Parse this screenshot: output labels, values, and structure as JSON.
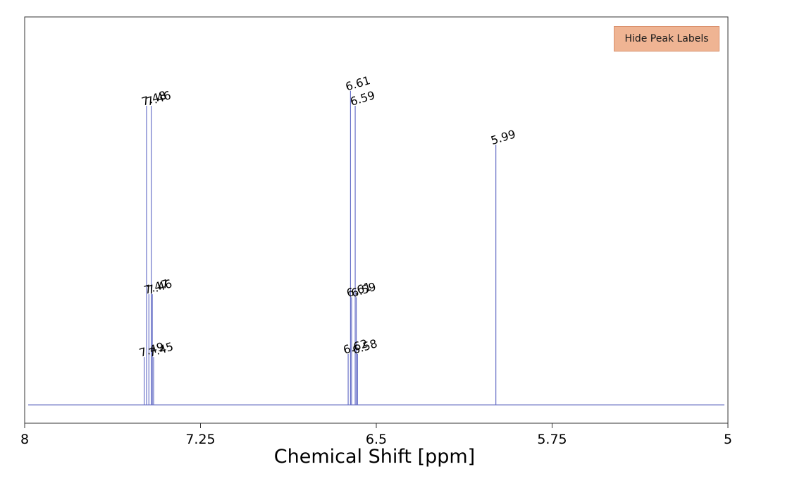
{
  "controls": {
    "toggle_label": "Hide Peak Labels"
  },
  "chart_data": {
    "type": "stick",
    "xlabel": "Chemical Shift [ppm]",
    "xlim": [
      8,
      5
    ],
    "xticks": [
      "8",
      "7.25",
      "6.5",
      "5.75",
      "5"
    ],
    "x_reversed": true,
    "peak_color": "#6a72c8",
    "baseline_color": "#8f96d4",
    "peaks": [
      {
        "x": 7.49,
        "y": 0.16,
        "label": "7.49"
      },
      {
        "x": 7.48,
        "y": 1.0,
        "label": "7.48"
      },
      {
        "x": 7.47,
        "y": 0.37,
        "label": "7.47"
      },
      {
        "x": 7.46,
        "y": 1.0,
        "label": "7.46"
      },
      {
        "x": 7.46,
        "y": 0.37,
        "label": "7.46"
      },
      {
        "x": 7.45,
        "y": 0.16,
        "label": "7.45"
      },
      {
        "x": 6.62,
        "y": 0.17,
        "label": "6.62"
      },
      {
        "x": 6.61,
        "y": 1.05,
        "label": "6.61"
      },
      {
        "x": 6.61,
        "y": 0.36,
        "label": "6.61"
      },
      {
        "x": 6.59,
        "y": 1.0,
        "label": "6.59"
      },
      {
        "x": 6.59,
        "y": 0.36,
        "label": "6.59"
      },
      {
        "x": 6.58,
        "y": 0.17,
        "label": "6.58"
      },
      {
        "x": 5.99,
        "y": 0.87,
        "label": "5.99"
      }
    ]
  }
}
